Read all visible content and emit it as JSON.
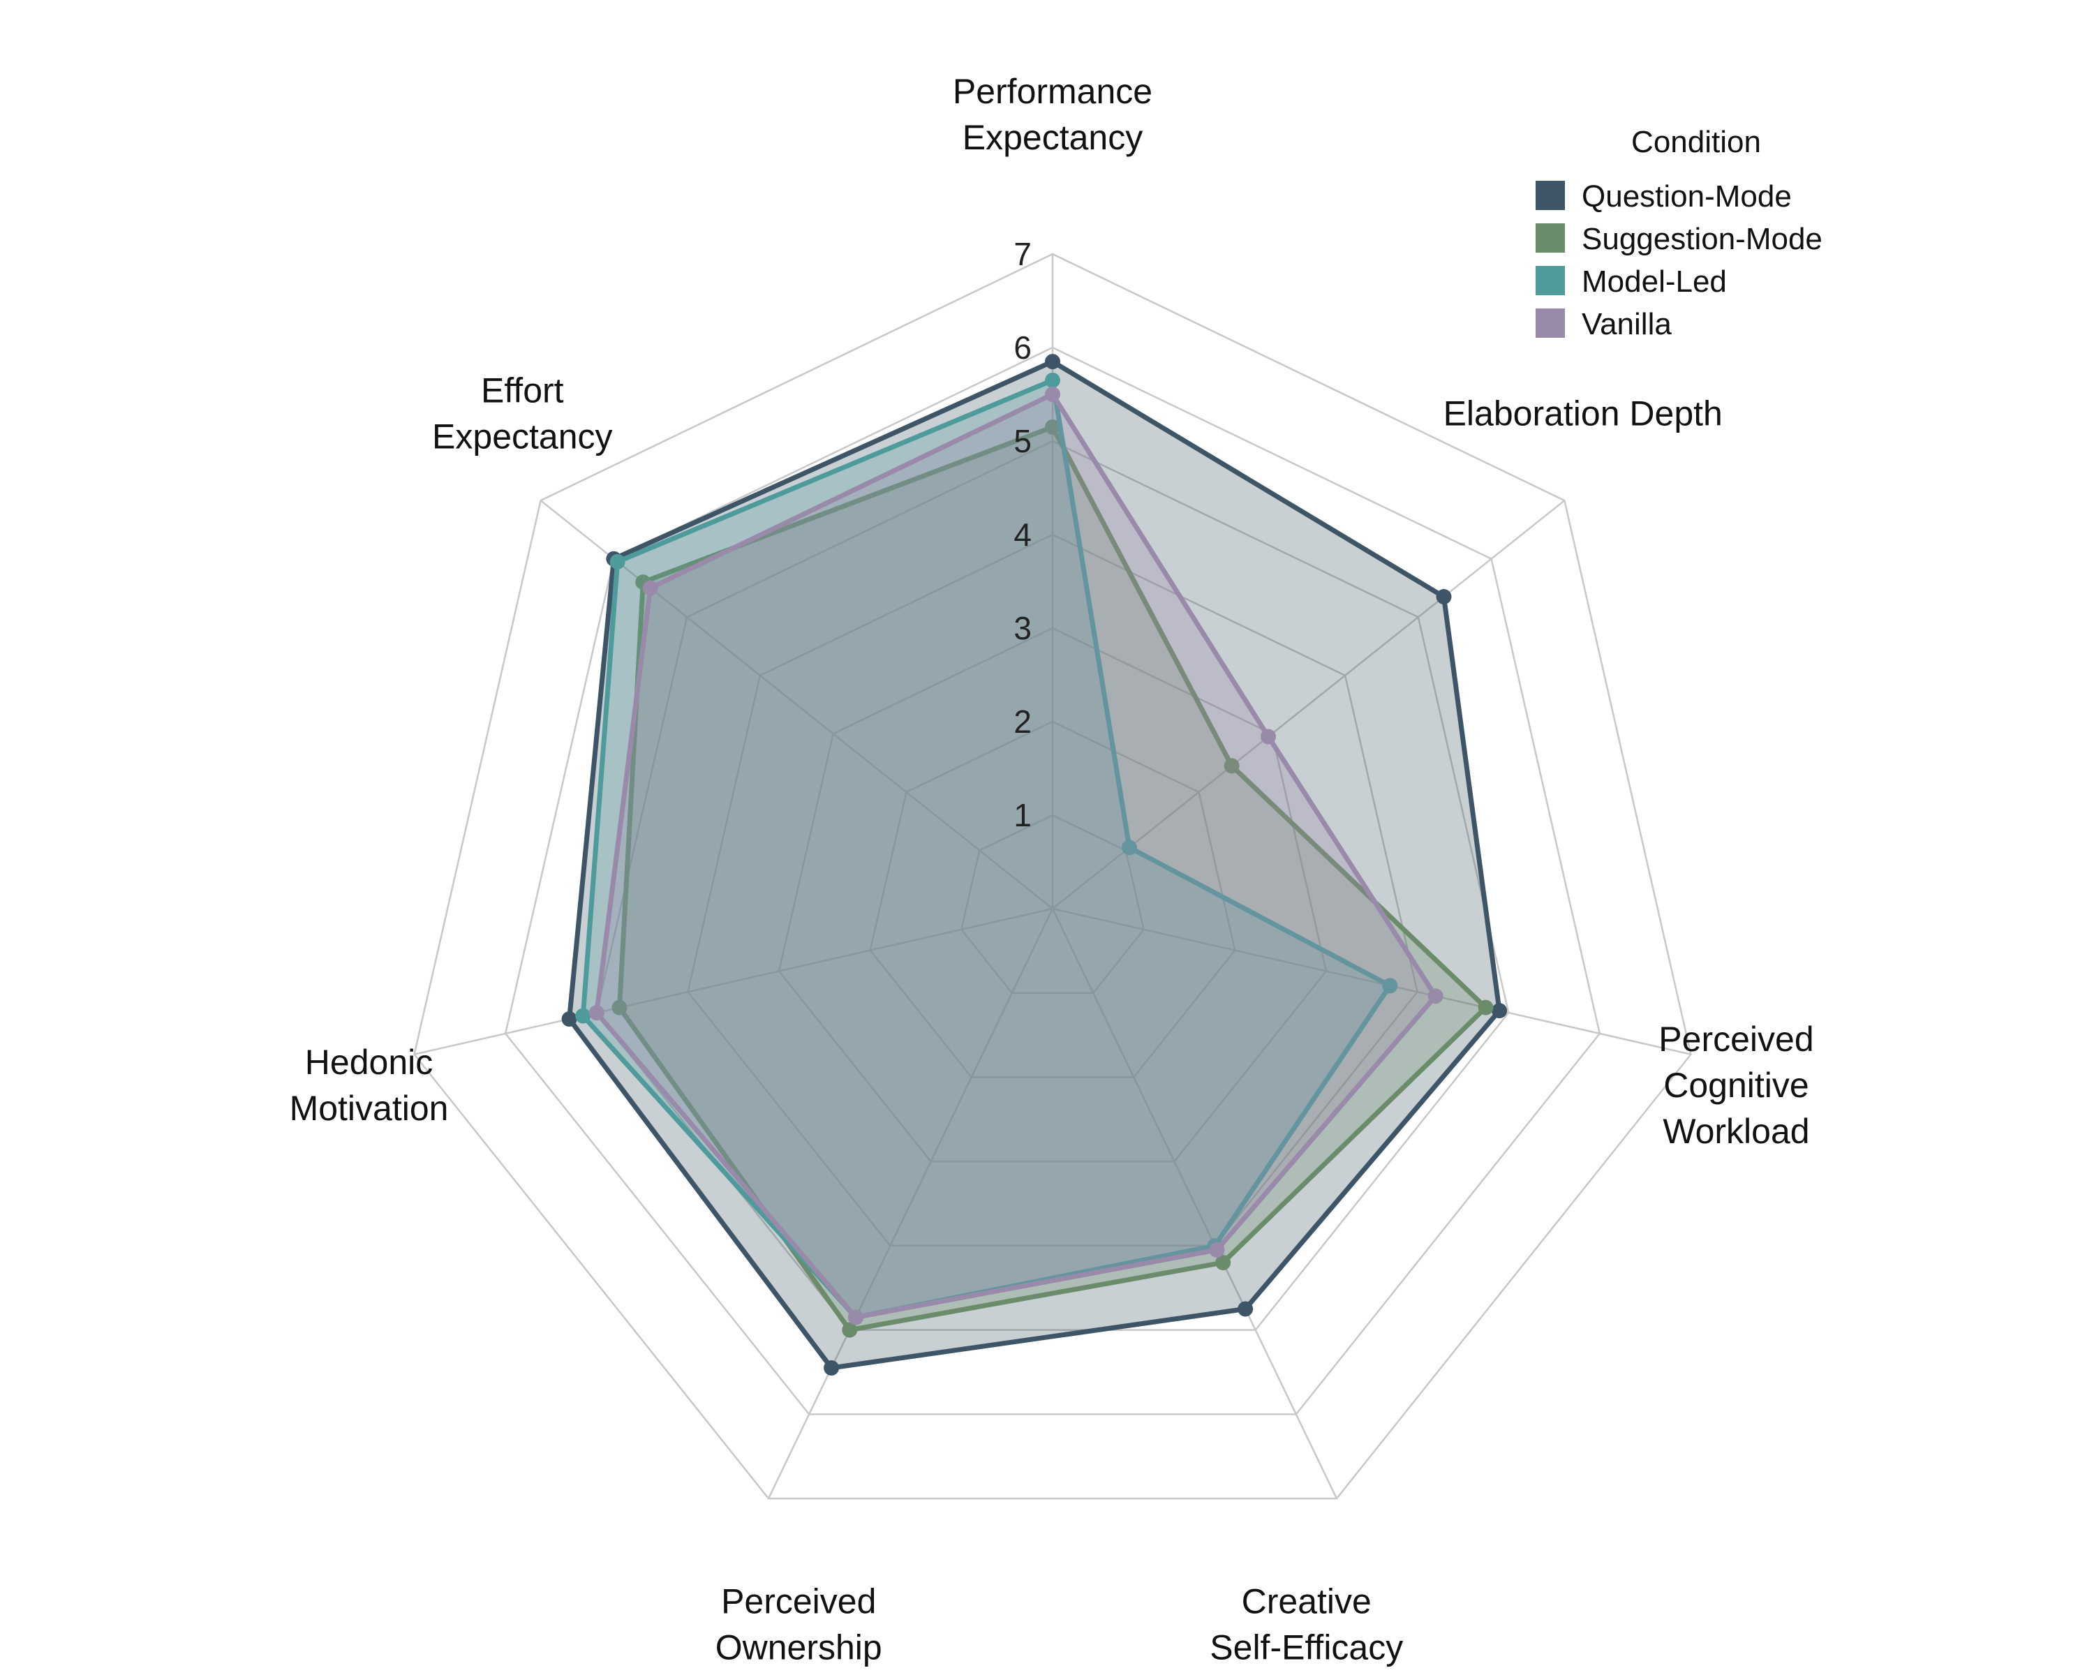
{
  "chart_data": {
    "type": "radar",
    "axes": [
      [
        "Performance",
        "Expectancy"
      ],
      [
        "Elaboration Depth"
      ],
      [
        "Perceived",
        "Cognitive",
        "Workload"
      ],
      [
        "Creative",
        "Self-Efficacy"
      ],
      [
        "Perceived",
        "Ownership"
      ],
      [
        "Hedonic",
        "Motivation"
      ],
      [
        "Effort",
        "Expectancy"
      ]
    ],
    "rlim": [
      0,
      7
    ],
    "ticks": [
      1,
      2,
      3,
      4,
      5,
      6,
      7
    ],
    "grid": true,
    "legend": {
      "title": "Condition",
      "placement": "top-right"
    },
    "series": [
      {
        "name": "Question-Mode",
        "color": "#3d5566",
        "values": [
          5.85,
          5.35,
          4.9,
          4.75,
          5.45,
          5.3,
          6.0
        ]
      },
      {
        "name": "Suggestion-Mode",
        "color": "#6b8c6a",
        "values": [
          5.15,
          2.45,
          4.75,
          4.2,
          5.0,
          4.75,
          5.6
        ]
      },
      {
        "name": "Model-Led",
        "color": "#4f9a9a",
        "values": [
          5.65,
          1.05,
          3.7,
          4.0,
          4.85,
          5.15,
          5.95
        ]
      },
      {
        "name": "Vanilla",
        "color": "#9a8aaa",
        "values": [
          5.5,
          2.95,
          4.2,
          4.05,
          4.85,
          5.0,
          5.5
        ]
      }
    ]
  }
}
